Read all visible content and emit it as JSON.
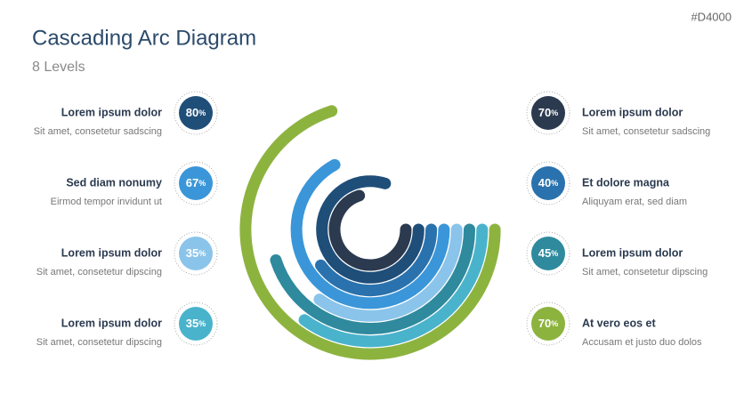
{
  "code": "#D4000",
  "header": {
    "title": "Cascading Arc Diagram",
    "subtitle": "8 Levels"
  },
  "unit": "%",
  "left": [
    {
      "title": "Lorem ipsum dolor",
      "text": "Sit amet, consetetur sadscing",
      "value": 80,
      "color": "#1f4e79"
    },
    {
      "title": "Sed diam nonumy",
      "text": "Eirmod tempor invidunt ut",
      "value": 67,
      "color": "#3a96d8"
    },
    {
      "title": "Lorem ipsum dolor",
      "text": "Sit amet, consetetur dipscing",
      "value": 35,
      "color": "#8bc4ea"
    },
    {
      "title": "Lorem ipsum dolor",
      "text": "Sit amet, consetetur dipscing",
      "value": 35,
      "color": "#4ab3cc"
    }
  ],
  "right": [
    {
      "title": "Lorem ipsum dolor",
      "text": "Sit amet, consetetur sadscing",
      "value": 70,
      "color": "#2b3a4f"
    },
    {
      "title": "Et dolore magna",
      "text": "Aliquyam erat, sed diam",
      "value": 40,
      "color": "#2a72ad"
    },
    {
      "title": "Lorem ipsum dolor",
      "text": "Sit amet, consetetur dipscing",
      "value": 45,
      "color": "#2f8a9e"
    },
    {
      "title": "At vero eos et",
      "text": "Accusam et justo duo dolos",
      "value": 70,
      "color": "#8db33f"
    }
  ]
}
